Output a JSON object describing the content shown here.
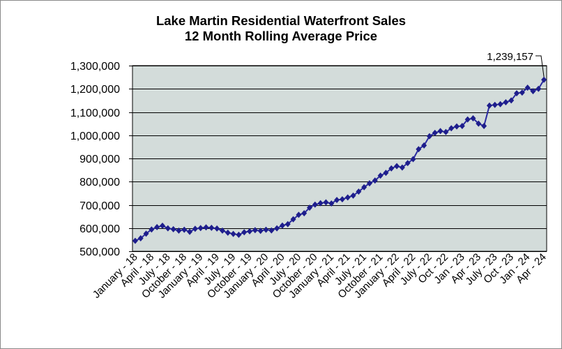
{
  "chart_data": {
    "type": "line",
    "title": "Lake Martin Residential Waterfront Sales",
    "subtitle": "12 Month Rolling Average Price",
    "categories": [
      "January - 18",
      "",
      "",
      "April - 18",
      "",
      "",
      "July - 18",
      "",
      "",
      "October - 18",
      "",
      "",
      "January - 19",
      "",
      "",
      "April - 19",
      "",
      "",
      "July - 19",
      "",
      "",
      "October - 19",
      "",
      "",
      "January - 20",
      "",
      "",
      "April - 20",
      "",
      "",
      "July - 20",
      "",
      "",
      "October - 20",
      "",
      "",
      "January - 21",
      "",
      "",
      "April - 21",
      "",
      "",
      "July - 21",
      "",
      "",
      "October - 21",
      "",
      "",
      "January - 22",
      "",
      "",
      "April - 22",
      "",
      "",
      "July - 22",
      "",
      "",
      "Oct - 22",
      "",
      "",
      "Jan - 23",
      "",
      "",
      "Apr - 23",
      "",
      "",
      "July - 23",
      "",
      "",
      "Oct - 23",
      "",
      "",
      "Jan - 24",
      "",
      "",
      "Apr - 24"
    ],
    "series": [
      {
        "values": [
          545000,
          556000,
          576000,
          594000,
          604000,
          610000,
          599000,
          595000,
          589000,
          593000,
          584000,
          597000,
          600000,
          603000,
          601000,
          598000,
          589000,
          580000,
          575000,
          571000,
          582000,
          586000,
          591000,
          588000,
          593000,
          590000,
          599000,
          611000,
          617000,
          638000,
          657000,
          664000,
          688000,
          701000,
          707000,
          711000,
          706000,
          721000,
          724000,
          732000,
          740000,
          757000,
          776000,
          793000,
          805000,
          826000,
          838000,
          857000,
          867000,
          861000,
          880000,
          897000,
          940000,
          956000,
          996000,
          1010000,
          1018000,
          1014000,
          1030000,
          1038000,
          1040000,
          1068000,
          1073000,
          1050000,
          1040000,
          1128000,
          1131000,
          1134000,
          1142000,
          1150000,
          1181000,
          1184000,
          1205000,
          1190000,
          1200000,
          1239157
        ]
      }
    ],
    "ylim": [
      500000,
      1300000
    ],
    "yticks": [
      {
        "value": 500000,
        "label": "500,000"
      },
      {
        "value": 600000,
        "label": "600,000"
      },
      {
        "value": 700000,
        "label": "700,000"
      },
      {
        "value": 800000,
        "label": "800,000"
      },
      {
        "value": 900000,
        "label": "900,000"
      },
      {
        "value": 1000000,
        "label": "1,000,000"
      },
      {
        "value": 1100000,
        "label": "1,100,000"
      },
      {
        "value": 1200000,
        "label": "1,200,000"
      },
      {
        "value": 1300000,
        "label": "1,300,000"
      }
    ],
    "annotations": [
      {
        "text": "1,239,157",
        "point_index": 75
      }
    ],
    "grid": true,
    "legend": "none",
    "marker": "diamond",
    "colors": {
      "line": "#2A2AA0",
      "marker": "#1E1E8C",
      "plot_background": "#D3DCDA",
      "grid": "#000000",
      "frame": "#8A8A8A"
    }
  }
}
